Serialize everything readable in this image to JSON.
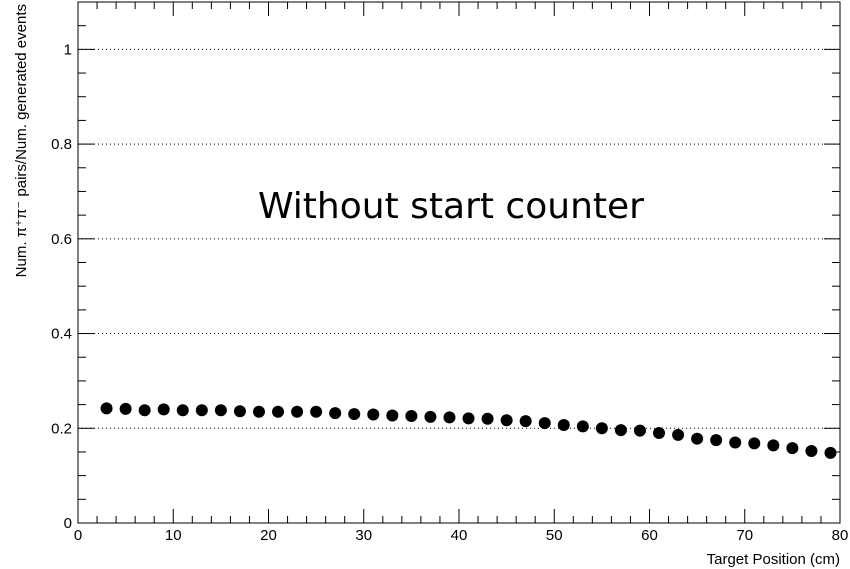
{
  "chart_data": {
    "type": "scatter",
    "title": "",
    "xlabel": "Target Position (cm)",
    "ylabel": "Num. π⁺π⁻ pairs/Num. generated events",
    "annotation": "Without start counter",
    "xlim": [
      0,
      80
    ],
    "ylim": [
      0,
      1.1
    ],
    "x_ticks": [
      0,
      10,
      20,
      30,
      40,
      50,
      60,
      70,
      80
    ],
    "y_ticks": [
      0,
      0.2,
      0.4,
      0.6,
      0.8,
      1
    ],
    "x_tick_labels": [
      "0",
      "10",
      "20",
      "30",
      "40",
      "50",
      "60",
      "70",
      "80"
    ],
    "y_tick_labels": [
      "0",
      "0.2",
      "0.4",
      "0.6",
      "0.8",
      "1"
    ],
    "y_gridlines": [
      0.2,
      0.4,
      0.6,
      0.8,
      1.0
    ],
    "grid": "horizontal-dotted",
    "marker_color": "#000000",
    "series": [
      {
        "x": [
          3,
          5,
          7,
          9,
          11,
          13,
          15,
          17,
          19,
          21,
          23,
          25,
          27,
          29,
          31,
          33,
          35,
          37,
          39,
          41,
          43,
          45,
          47,
          49,
          51,
          53,
          55,
          57,
          59,
          61,
          63,
          65,
          67,
          69,
          71,
          73,
          75,
          77,
          79
        ],
        "y": [
          0.242,
          0.241,
          0.238,
          0.24,
          0.238,
          0.238,
          0.238,
          0.236,
          0.235,
          0.235,
          0.235,
          0.235,
          0.232,
          0.23,
          0.229,
          0.227,
          0.226,
          0.224,
          0.223,
          0.221,
          0.22,
          0.217,
          0.215,
          0.211,
          0.207,
          0.204,
          0.2,
          0.196,
          0.195,
          0.19,
          0.186,
          0.178,
          0.175,
          0.17,
          0.168,
          0.164,
          0.158,
          0.152,
          0.148
        ]
      }
    ]
  }
}
